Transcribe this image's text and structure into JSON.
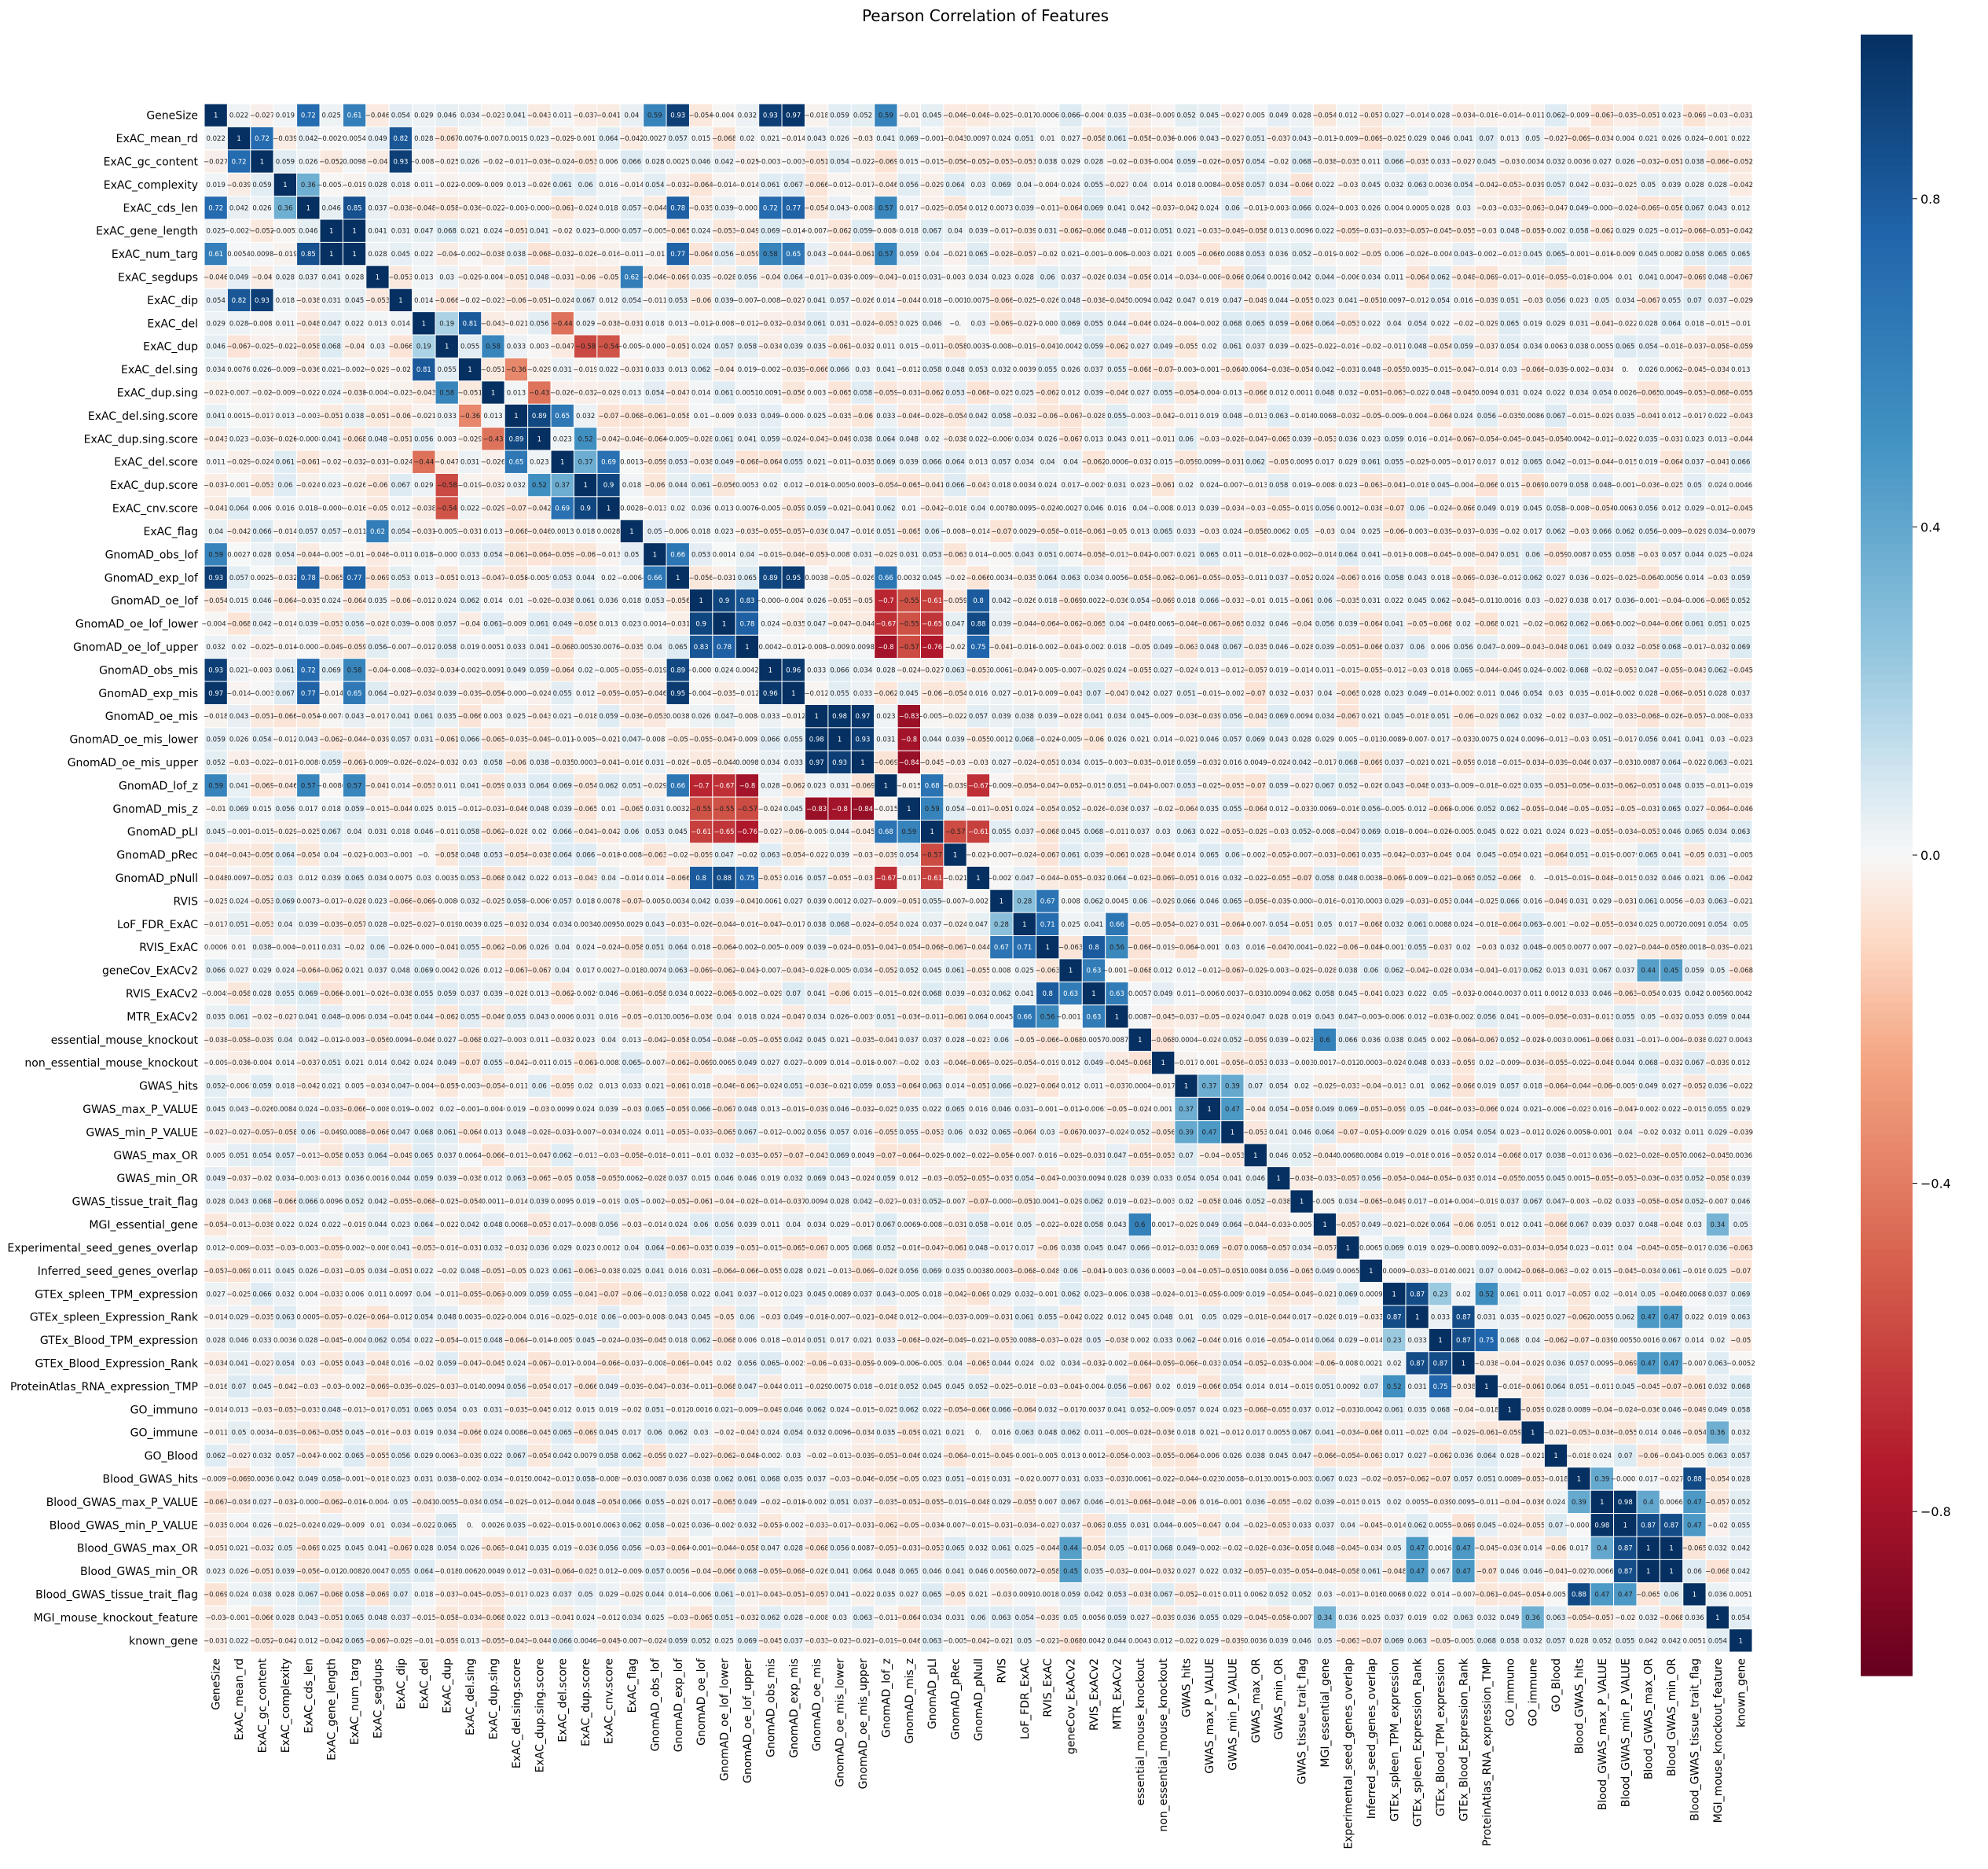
{
  "chart_data": {
    "type": "heatmap",
    "title": "Pearson Correlation of Features",
    "xlabel": "",
    "ylabel": "",
    "labels": [
      "GeneSize",
      "ExAC_mean_rd",
      "ExAC_gc_content",
      "ExAC_complexity",
      "ExAC_cds_len",
      "ExAC_gene_length",
      "ExAC_num_targ",
      "ExAC_segdups",
      "ExAC_dip",
      "ExAC_del",
      "ExAC_dup",
      "ExAC_del.sing",
      "ExAC_dup.sing",
      "ExAC_del.sing.score",
      "ExAC_dup.sing.score",
      "ExAC_del.score",
      "ExAC_dup.score",
      "ExAC_cnv.score",
      "ExAC_flag",
      "GnomAD_obs_lof",
      "GnomAD_exp_lof",
      "GnomAD_oe_lof",
      "GnomAD_oe_lof_lower",
      "GnomAD_oe_lof_upper",
      "GnomAD_obs_mis",
      "GnomAD_exp_mis",
      "GnomAD_oe_mis",
      "GnomAD_oe_mis_lower",
      "GnomAD_oe_mis_upper",
      "GnomAD_lof_z",
      "GnomAD_mis_z",
      "GnomAD_pLI",
      "GnomAD_pRec",
      "GnomAD_pNull",
      "RVIS",
      "LoF_FDR_ExAC",
      "RVIS_ExAC",
      "geneCov_ExACv2",
      "RVIS_ExACv2",
      "MTR_ExACv2",
      "essential_mouse_knockout",
      "non_essential_mouse_knockout",
      "GWAS_hits",
      "GWAS_max_P_VALUE",
      "GWAS_min_P_VALUE",
      "GWAS_max_OR",
      "GWAS_min_OR",
      "GWAS_tissue_trait_flag",
      "MGI_essential_gene",
      "Experimental_seed_genes_overlap",
      "Inferred_seed_genes_overlap",
      "GTEx_spleen_TPM_expression",
      "GTEx_spleen_Expression_Rank",
      "GTEx_Blood_TPM_expression",
      "GTEx_Blood_Expression_Rank",
      "ProteinAtlas_RNA_expression_TMP",
      "GO_immuno",
      "GO_immune",
      "GO_Blood",
      "Blood_GWAS_hits",
      "Blood_GWAS_max_P_VALUE",
      "Blood_GWAS_min_P_VALUE",
      "Blood_GWAS_max_OR",
      "Blood_GWAS_min_OR",
      "Blood_GWAS_tissue_trait_flag",
      "MGI_mouse_knockout_feature",
      "known_gene"
    ],
    "vmin": -1,
    "vmax": 1,
    "colormap": "RdBu",
    "colorbar_ticks": [
      0.8,
      0.4,
      0.0,
      -0.4,
      -0.8
    ],
    "colorbar_tick_labels": [
      "0.8",
      "0.4",
      "0.0",
      "−0.4",
      "−0.8"
    ],
    "strong_pairs": [
      [
        0,
        4,
        0.72
      ],
      [
        0,
        6,
        0.61
      ],
      [
        0,
        19,
        0.59
      ],
      [
        0,
        20,
        0.93
      ],
      [
        0,
        24,
        0.93
      ],
      [
        0,
        25,
        0.97
      ],
      [
        0,
        29,
        0.59
      ],
      [
        1,
        2,
        0.72
      ],
      [
        1,
        8,
        0.82
      ],
      [
        2,
        8,
        0.93
      ],
      [
        3,
        4,
        0.36
      ],
      [
        4,
        6,
        0.85
      ],
      [
        4,
        20,
        0.78
      ],
      [
        4,
        24,
        0.72
      ],
      [
        4,
        25,
        0.77
      ],
      [
        4,
        29,
        0.57
      ],
      [
        5,
        6,
        1
      ],
      [
        6,
        20,
        0.77
      ],
      [
        6,
        24,
        0.58
      ],
      [
        6,
        25,
        0.65
      ],
      [
        6,
        29,
        0.57
      ],
      [
        7,
        18,
        0.62
      ],
      [
        9,
        10,
        0.19
      ],
      [
        9,
        11,
        0.81
      ],
      [
        10,
        12,
        0.58
      ],
      [
        13,
        14,
        0.89
      ],
      [
        13,
        15,
        0.65
      ],
      [
        14,
        16,
        0.52
      ],
      [
        15,
        16,
        0.37
      ],
      [
        15,
        17,
        0.69
      ],
      [
        16,
        17,
        0.9
      ],
      [
        9,
        15,
        -0.44
      ],
      [
        10,
        16,
        -0.58
      ],
      [
        10,
        17,
        -0.54
      ],
      [
        11,
        13,
        -0.36
      ],
      [
        12,
        14,
        -0.43
      ],
      [
        19,
        20,
        0.66
      ],
      [
        20,
        24,
        0.89
      ],
      [
        20,
        25,
        0.95
      ],
      [
        20,
        29,
        0.66
      ],
      [
        24,
        25,
        0.96
      ],
      [
        21,
        22,
        0.9
      ],
      [
        21,
        23,
        0.83
      ],
      [
        22,
        23,
        0.78
      ],
      [
        21,
        33,
        0.8
      ],
      [
        22,
        33,
        0.88
      ],
      [
        23,
        33,
        0.75
      ],
      [
        21,
        29,
        -0.7
      ],
      [
        22,
        29,
        -0.67
      ],
      [
        23,
        29,
        -0.8
      ],
      [
        21,
        31,
        -0.61
      ],
      [
        22,
        31,
        -0.65
      ],
      [
        23,
        31,
        -0.76
      ],
      [
        21,
        30,
        -0.55
      ],
      [
        22,
        30,
        -0.55
      ],
      [
        23,
        30,
        -0.57
      ],
      [
        26,
        27,
        0.98
      ],
      [
        26,
        28,
        0.97
      ],
      [
        27,
        28,
        0.93
      ],
      [
        26,
        30,
        -0.83
      ],
      [
        27,
        30,
        -0.8
      ],
      [
        28,
        30,
        -0.84
      ],
      [
        29,
        31,
        0.68
      ],
      [
        30,
        31,
        0.59
      ],
      [
        29,
        33,
        -0.67
      ],
      [
        31,
        33,
        -0.61
      ],
      [
        31,
        32,
        -0.57
      ],
      [
        34,
        35,
        0.28
      ],
      [
        34,
        36,
        0.67
      ],
      [
        35,
        36,
        0.71
      ],
      [
        35,
        39,
        0.66
      ],
      [
        36,
        38,
        0.8
      ],
      [
        36,
        39,
        0.56
      ],
      [
        37,
        38,
        0.63
      ],
      [
        38,
        39,
        0.63
      ],
      [
        37,
        63,
        0.45
      ],
      [
        37,
        62,
        0.44
      ],
      [
        40,
        48,
        0.6
      ],
      [
        42,
        43,
        0.37
      ],
      [
        42,
        44,
        0.39
      ],
      [
        43,
        44,
        0.47
      ],
      [
        51,
        52,
        0.87
      ],
      [
        51,
        53,
        0.23
      ],
      [
        51,
        55,
        0.52
      ],
      [
        53,
        54,
        0.87
      ],
      [
        53,
        55,
        0.75
      ],
      [
        52,
        54,
        0.87
      ],
      [
        59,
        60,
        0.39
      ],
      [
        59,
        64,
        0.88
      ],
      [
        60,
        61,
        0.98
      ],
      [
        60,
        64,
        0.47
      ],
      [
        61,
        64,
        0.47
      ],
      [
        62,
        63,
        1
      ],
      [
        60,
        62,
        0.4
      ],
      [
        61,
        62,
        0.87
      ],
      [
        61,
        63,
        0.87
      ],
      [
        52,
        62,
        0.47
      ],
      [
        54,
        62,
        0.47
      ],
      [
        52,
        63,
        0.47
      ],
      [
        54,
        63,
        0.47
      ],
      [
        48,
        65,
        0.34
      ],
      [
        57,
        65,
        0.36
      ]
    ]
  }
}
